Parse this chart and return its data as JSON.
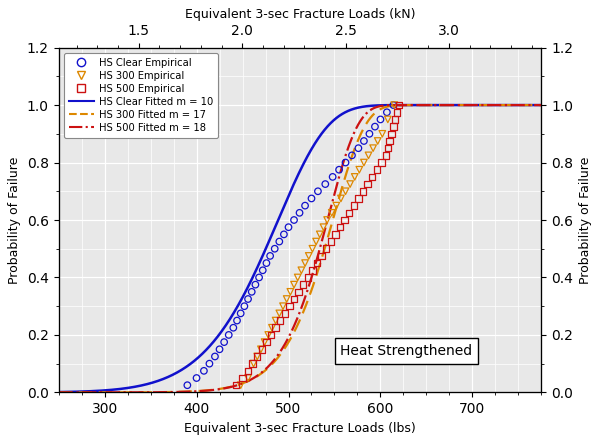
{
  "title_top": "Equivalent 3-sec Fracture Loads (kN)",
  "xlabel": "Equivalent 3-sec Fracture Loads (lbs)",
  "ylabel_left": "Probability of Failure",
  "ylabel_right": "Probability of Failure",
  "annotation": "Heat Strengthened",
  "xlim_lbs": [
    250,
    775
  ],
  "ylim": [
    0.0,
    1.2
  ],
  "yticks": [
    0.0,
    0.2,
    0.4,
    0.6,
    0.8,
    1.0,
    1.2
  ],
  "hs_clear_empirical": [
    [
      390,
      0.025
    ],
    [
      400,
      0.05
    ],
    [
      408,
      0.075
    ],
    [
      414,
      0.1
    ],
    [
      420,
      0.125
    ],
    [
      425,
      0.15
    ],
    [
      430,
      0.175
    ],
    [
      435,
      0.2
    ],
    [
      440,
      0.225
    ],
    [
      444,
      0.25
    ],
    [
      448,
      0.275
    ],
    [
      452,
      0.3
    ],
    [
      456,
      0.325
    ],
    [
      460,
      0.35
    ],
    [
      464,
      0.375
    ],
    [
      468,
      0.4
    ],
    [
      472,
      0.425
    ],
    [
      476,
      0.45
    ],
    [
      480,
      0.475
    ],
    [
      485,
      0.5
    ],
    [
      490,
      0.525
    ],
    [
      495,
      0.55
    ],
    [
      500,
      0.575
    ],
    [
      506,
      0.6
    ],
    [
      512,
      0.625
    ],
    [
      518,
      0.65
    ],
    [
      525,
      0.675
    ],
    [
      532,
      0.7
    ],
    [
      540,
      0.725
    ],
    [
      548,
      0.75
    ],
    [
      555,
      0.775
    ],
    [
      562,
      0.8
    ],
    [
      569,
      0.825
    ],
    [
      576,
      0.85
    ],
    [
      582,
      0.875
    ],
    [
      588,
      0.9
    ],
    [
      594,
      0.925
    ],
    [
      600,
      0.95
    ],
    [
      607,
      0.975
    ],
    [
      614,
      1.0
    ]
  ],
  "hs_300_empirical": [
    [
      448,
      0.025
    ],
    [
      456,
      0.05
    ],
    [
      462,
      0.1
    ],
    [
      466,
      0.125
    ],
    [
      470,
      0.15
    ],
    [
      474,
      0.175
    ],
    [
      478,
      0.2
    ],
    [
      482,
      0.225
    ],
    [
      486,
      0.25
    ],
    [
      490,
      0.275
    ],
    [
      494,
      0.3
    ],
    [
      498,
      0.325
    ],
    [
      502,
      0.35
    ],
    [
      506,
      0.375
    ],
    [
      510,
      0.4
    ],
    [
      514,
      0.425
    ],
    [
      518,
      0.45
    ],
    [
      522,
      0.475
    ],
    [
      526,
      0.5
    ],
    [
      530,
      0.525
    ],
    [
      534,
      0.55
    ],
    [
      538,
      0.575
    ],
    [
      542,
      0.6
    ],
    [
      547,
      0.625
    ],
    [
      552,
      0.65
    ],
    [
      557,
      0.675
    ],
    [
      562,
      0.7
    ],
    [
      567,
      0.725
    ],
    [
      572,
      0.75
    ],
    [
      577,
      0.775
    ],
    [
      582,
      0.8
    ],
    [
      587,
      0.825
    ],
    [
      592,
      0.85
    ],
    [
      597,
      0.875
    ],
    [
      602,
      0.9
    ],
    [
      608,
      0.95
    ],
    [
      615,
      1.0
    ]
  ],
  "hs_500_empirical": [
    [
      443,
      0.025
    ],
    [
      450,
      0.05
    ],
    [
      456,
      0.075
    ],
    [
      461,
      0.1
    ],
    [
      466,
      0.125
    ],
    [
      471,
      0.15
    ],
    [
      476,
      0.175
    ],
    [
      481,
      0.2
    ],
    [
      486,
      0.225
    ],
    [
      491,
      0.25
    ],
    [
      496,
      0.275
    ],
    [
      501,
      0.3
    ],
    [
      506,
      0.325
    ],
    [
      511,
      0.35
    ],
    [
      516,
      0.375
    ],
    [
      521,
      0.4
    ],
    [
      526,
      0.425
    ],
    [
      531,
      0.45
    ],
    [
      536,
      0.475
    ],
    [
      541,
      0.5
    ],
    [
      546,
      0.525
    ],
    [
      551,
      0.55
    ],
    [
      556,
      0.575
    ],
    [
      561,
      0.6
    ],
    [
      566,
      0.625
    ],
    [
      571,
      0.65
    ],
    [
      576,
      0.675
    ],
    [
      581,
      0.7
    ],
    [
      586,
      0.725
    ],
    [
      591,
      0.75
    ],
    [
      596,
      0.775
    ],
    [
      601,
      0.8
    ],
    [
      606,
      0.825
    ],
    [
      608,
      0.85
    ],
    [
      610,
      0.875
    ],
    [
      612,
      0.9
    ],
    [
      614,
      0.925
    ],
    [
      616,
      0.95
    ],
    [
      618,
      0.975
    ],
    [
      620,
      1.0
    ]
  ],
  "weibull_clear_theta": 493.0,
  "weibull_clear_m": 10,
  "weibull_300_theta": 551.0,
  "weibull_300_m": 17,
  "weibull_500_theta": 545.0,
  "weibull_500_m": 18,
  "color_clear": "#1111CC",
  "color_300": "#DD8800",
  "color_500": "#CC1111",
  "bg_color": "#e8e8e8",
  "legend_entries": [
    "HS Clear Empirical",
    "HS 300 Empirical",
    "HS 500 Empirical",
    "HS Clear Fitted m = 10",
    "HS 300 Fitted m = 17",
    "HS 500 Fitted m = 18"
  ],
  "lbs_to_kN": 0.00444822,
  "xticks_lbs": [
    300,
    400,
    500,
    600,
    700
  ],
  "kN_ticks": [
    1.5,
    2.0,
    2.5,
    3.0
  ]
}
